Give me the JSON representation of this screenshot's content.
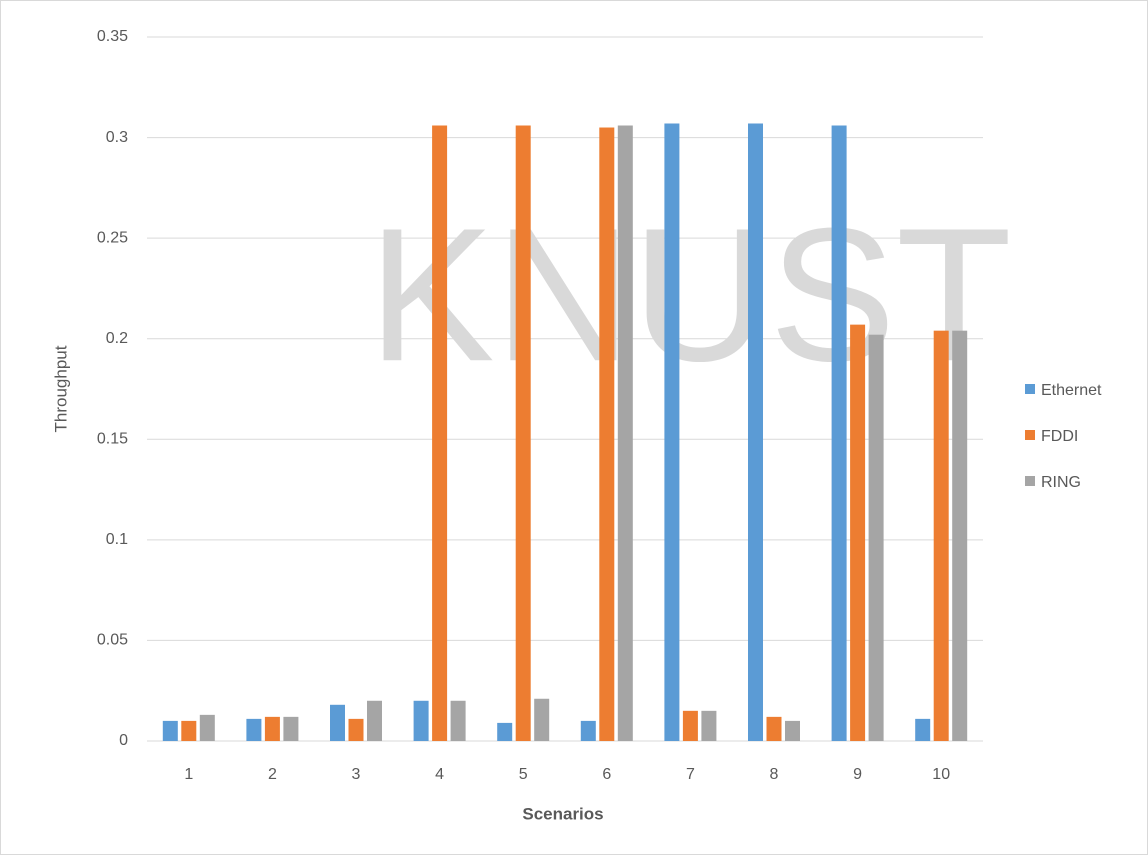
{
  "chart_data": {
    "type": "bar",
    "watermark": "KNUST",
    "x_label": "Scenarios",
    "y_label": "Throughput",
    "categories": [
      "1",
      "2",
      "3",
      "4",
      "5",
      "6",
      "7",
      "8",
      "9",
      "10"
    ],
    "series": [
      {
        "name": "Ethernet",
        "color": "#5b9bd5",
        "values": [
          0.01,
          0.011,
          0.018,
          0.02,
          0.009,
          0.01,
          0.307,
          0.307,
          0.306,
          0.011
        ]
      },
      {
        "name": "FDDI",
        "color": "#ed7d31",
        "values": [
          0.01,
          0.012,
          0.011,
          0.306,
          0.306,
          0.305,
          0.015,
          0.012,
          0.207,
          0.204
        ]
      },
      {
        "name": "RING",
        "color": "#a5a5a5",
        "values": [
          0.013,
          0.012,
          0.02,
          0.02,
          0.021,
          0.306,
          0.015,
          0.01,
          0.202,
          0.204
        ]
      }
    ],
    "ylim": [
      0,
      0.35
    ],
    "yticks": [
      0,
      0.05,
      0.1,
      0.15,
      0.2,
      0.25,
      0.3,
      0.35
    ],
    "grid": true,
    "legend": "right"
  }
}
